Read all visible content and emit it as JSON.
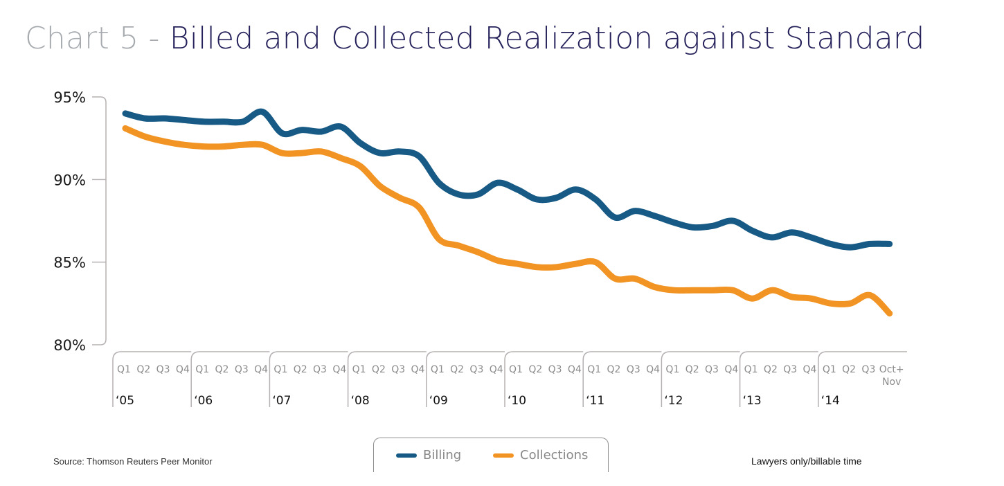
{
  "title": {
    "prefix": "Chart 5 - ",
    "main": "Billed and Collected Realization against Standard"
  },
  "footer": {
    "source": "Source: Thomson Reuters Peer Monitor",
    "note": "Lawyers only/billable time"
  },
  "colors": {
    "billing": "#175a85",
    "collections": "#f29423",
    "axis": "#b5b1b1"
  },
  "chart_data": {
    "type": "line",
    "title": "Chart 5 - Billed and Collected Realization against Standard",
    "xlabel": "",
    "ylabel": "",
    "ylim": [
      80,
      95
    ],
    "yticks": [
      "80%",
      "85%",
      "90%",
      "95%"
    ],
    "ytick_values": [
      80,
      85,
      90,
      95
    ],
    "grid": false,
    "legend_position": "bottom-center",
    "years": [
      "‘05",
      "‘06",
      "‘07",
      "‘08",
      "‘09",
      "‘10",
      "‘11",
      "‘12",
      "‘13",
      "‘14"
    ],
    "quarter_labels": [
      "Q1",
      "Q2",
      "Q3",
      "Q4"
    ],
    "last_period_label": [
      "Oct+",
      "Nov"
    ],
    "x": [
      "Q1 '05",
      "Q2 '05",
      "Q3 '05",
      "Q4 '05",
      "Q1 '06",
      "Q2 '06",
      "Q3 '06",
      "Q4 '06",
      "Q1 '07",
      "Q2 '07",
      "Q3 '07",
      "Q4 '07",
      "Q1 '08",
      "Q2 '08",
      "Q3 '08",
      "Q4 '08",
      "Q1 '09",
      "Q2 '09",
      "Q3 '09",
      "Q4 '09",
      "Q1 '10",
      "Q2 '10",
      "Q3 '10",
      "Q4 '10",
      "Q1 '11",
      "Q2 '11",
      "Q3 '11",
      "Q4 '11",
      "Q1 '12",
      "Q2 '12",
      "Q3 '12",
      "Q4 '12",
      "Q1 '13",
      "Q2 '13",
      "Q3 '13",
      "Q4 '13",
      "Q1 '14",
      "Q2 '14",
      "Q3 '14",
      "Oct+Nov '14"
    ],
    "series": [
      {
        "name": "Billing",
        "values": [
          94.0,
          93.7,
          93.7,
          93.6,
          93.5,
          93.5,
          93.5,
          94.1,
          92.8,
          93.0,
          92.9,
          93.2,
          92.2,
          91.6,
          91.7,
          91.4,
          89.8,
          89.1,
          89.1,
          89.8,
          89.4,
          88.8,
          88.9,
          89.4,
          88.8,
          87.7,
          88.1,
          87.8,
          87.4,
          87.1,
          87.2,
          87.5,
          86.9,
          86.5,
          86.8,
          86.5,
          86.1,
          85.9,
          86.1,
          86.1
        ]
      },
      {
        "name": "Collections",
        "values": [
          93.1,
          92.6,
          92.3,
          92.1,
          92.0,
          92.0,
          92.1,
          92.1,
          91.6,
          91.6,
          91.7,
          91.3,
          90.8,
          89.6,
          88.9,
          88.3,
          86.4,
          86.0,
          85.6,
          85.1,
          84.9,
          84.7,
          84.7,
          84.9,
          85.0,
          84.0,
          84.0,
          83.5,
          83.3,
          83.3,
          83.3,
          83.3,
          82.8,
          83.3,
          82.9,
          82.8,
          82.5,
          82.5,
          83.0,
          81.9
        ]
      }
    ]
  }
}
